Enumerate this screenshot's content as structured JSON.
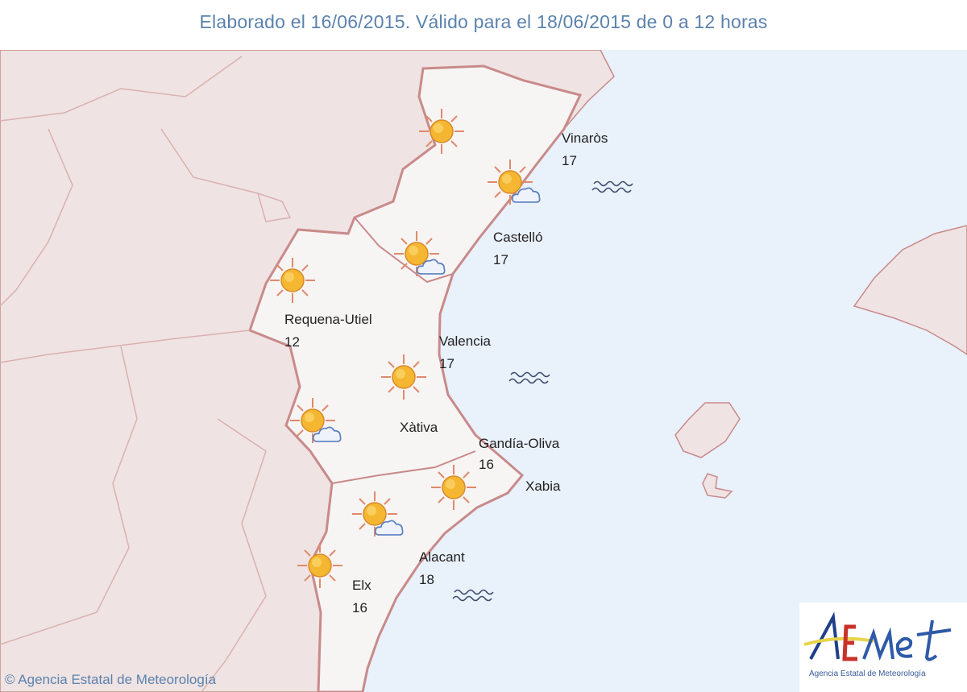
{
  "header": {
    "title": "Elaborado el 16/06/2015. Válido para el 18/06/2015 de 0 a 12 horas"
  },
  "locations": [
    {
      "name": "Vinaròs",
      "temp": "17"
    },
    {
      "name": "Castelló",
      "temp": "17"
    },
    {
      "name": "Requena-Utiel",
      "temp": "12"
    },
    {
      "name": "Valencia",
      "temp": "17"
    },
    {
      "name": "Xàtiva",
      "temp": ""
    },
    {
      "name": "Gandía-Oliva",
      "temp": "16"
    },
    {
      "name": "Xabia",
      "temp": ""
    },
    {
      "name": "Alacant",
      "temp": "18"
    },
    {
      "name": "Elx",
      "temp": "16"
    }
  ],
  "icons": [
    "sun",
    "sun-cloud",
    "sun-cloud",
    "sun",
    "sun",
    "sun-cloud",
    "sun",
    "sun-cloud",
    "sun",
    "sea-waves",
    "sea-waves",
    "sea-waves"
  ],
  "footer": {
    "copyright": "© Agencia Estatal de Meteorología"
  },
  "logo": {
    "text": "AEMet",
    "subtitle": "Agencia Estatal de Meteorología"
  },
  "colors": {
    "sea": "#e9f1fb",
    "land": "#efe3e3",
    "region": "#f7f4f4",
    "border": "#c98a8a",
    "title": "#5b82ad"
  }
}
